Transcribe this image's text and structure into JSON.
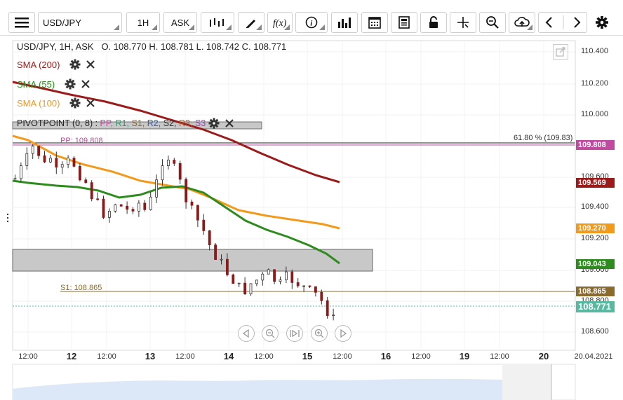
{
  "toolbar": {
    "symbol": "USD/JPY",
    "timeframe": "1H",
    "price_side": "ASK"
  },
  "legend": {
    "title": "USD/JPY, 1H, ASK",
    "ohlc": "O. 108.770 H. 108.781 L. 108.742 C. 108.771"
  },
  "indicators": [
    {
      "label": "SMA (200)",
      "color": "#9b1b1b"
    },
    {
      "label": "SMA (55)",
      "color": "#2e8b1e"
    },
    {
      "label": "SMA (100)",
      "color": "#f29a1c"
    }
  ],
  "pivot": {
    "prefix": "PIVOTPOINT (0, 8) : ",
    "items": [
      {
        "label": "PP",
        "color": "#c04aa0"
      },
      {
        "label": "R1",
        "color": "#2a9d6b"
      },
      {
        "label": "S1",
        "color": "#8b6a2e"
      },
      {
        "label": "R2",
        "color": "#3a5fb0"
      },
      {
        "label": "S2",
        "color": "#333333"
      },
      {
        "label": "R3",
        "color": "#b05a2a"
      },
      {
        "label": "S3",
        "color": "#a040c0"
      }
    ]
  },
  "levels": {
    "pp_label": "PP: 109.808",
    "s1_label": "S1: 108.865",
    "fib_label": "61.80 % (109.83)"
  },
  "price_tags": [
    {
      "value": "109.808",
      "color": "#c04aa0"
    },
    {
      "value": "109.569",
      "color": "#9b1b1b"
    },
    {
      "value": "109.270",
      "color": "#f29a1c"
    },
    {
      "value": "109.043",
      "color": "#2e8b1e"
    },
    {
      "value": "108.865",
      "color": "#8b6a2e"
    },
    {
      "value": "108.771",
      "color": "#58b8a0"
    }
  ],
  "y_axis": [
    "110.400",
    "110.200",
    "110.000",
    "109.600",
    "109.400",
    "109.200",
    "109.000",
    "108.800",
    "108.600"
  ],
  "x_axis": [
    {
      "label": "12:00",
      "big": false
    },
    {
      "label": "12",
      "big": true
    },
    {
      "label": "12:00",
      "big": false
    },
    {
      "label": "13",
      "big": true
    },
    {
      "label": "12:00",
      "big": false
    },
    {
      "label": "14",
      "big": true
    },
    {
      "label": "12:00",
      "big": false
    },
    {
      "label": "15",
      "big": true
    },
    {
      "label": "12:00",
      "big": false
    },
    {
      "label": "16",
      "big": true
    },
    {
      "label": "12:00",
      "big": false
    },
    {
      "label": "19",
      "big": true
    },
    {
      "label": "12:00",
      "big": false
    },
    {
      "label": "20",
      "big": true
    },
    {
      "label": "20.04.2021",
      "big": false
    }
  ]
}
